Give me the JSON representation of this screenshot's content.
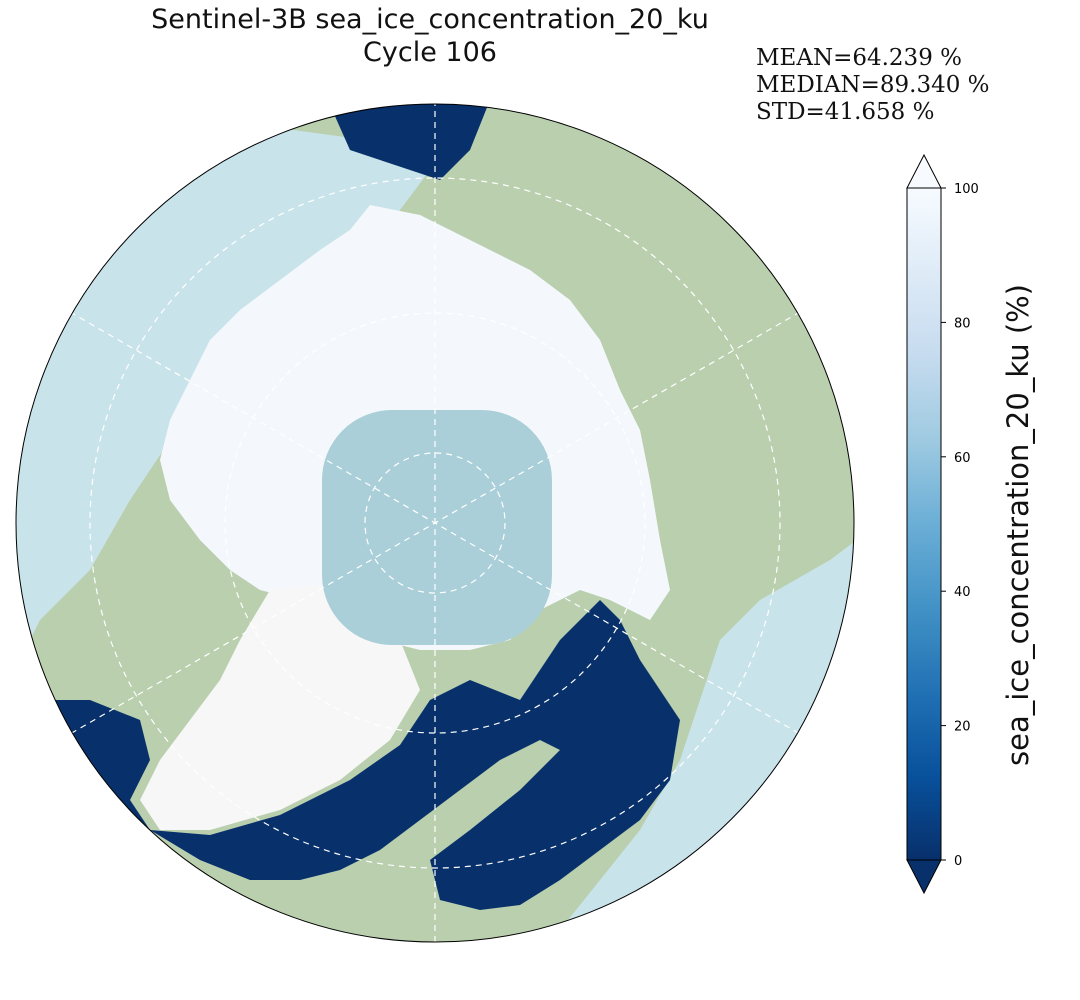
{
  "title": {
    "line1": "Sentinel-3B sea_ice_concentration_20_ku",
    "line2": "Cycle 106"
  },
  "stats": {
    "mean": "MEAN=64.239 %",
    "median": "MEDIAN=89.340 %",
    "std": "STD=41.658 %"
  },
  "colorbar": {
    "label": "sea_ice_concentration_20_ku (%)",
    "ticks": [
      "0",
      "20",
      "40",
      "60",
      "80",
      "100"
    ],
    "range": [
      0,
      100
    ],
    "extend": "both",
    "colormap": "Blues_r",
    "colors": [
      "#08306b",
      "#08519c",
      "#2171b5",
      "#4292c6",
      "#6baed6",
      "#9ecae1",
      "#c6dbef",
      "#deebf7",
      "#f7fbff"
    ]
  },
  "map": {
    "projection": "north polar stereographic",
    "graticule": "dashed white",
    "land_color": "#b9cfae",
    "ocean_color": "#c9e3ea",
    "open_water_color": "#08306b",
    "pole_hole_color": "#aacfd8",
    "ice_color": "#f4f8fd"
  }
}
